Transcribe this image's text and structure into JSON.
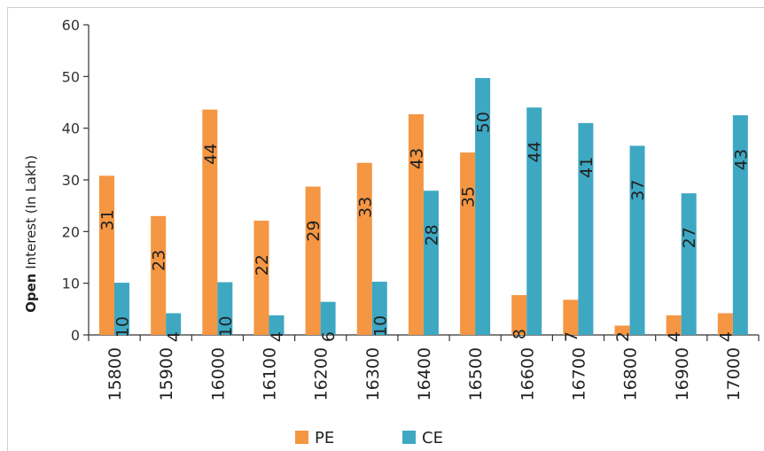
{
  "chart_data": {
    "type": "bar",
    "title": "",
    "xlabel": "",
    "ylabel_bold": "Open",
    "ylabel_rest": " Interest  (In Lakh)",
    "ylim": [
      0,
      60
    ],
    "yticks": [
      0,
      10,
      20,
      30,
      40,
      50,
      60
    ],
    "grid": false,
    "legend_position": "bottom",
    "categories": [
      "15800",
      "15900",
      "16000",
      "16100",
      "16200",
      "16300",
      "16400",
      "16500",
      "16600",
      "16700",
      "16800",
      "16900",
      "17000"
    ],
    "series": [
      {
        "name": "PE",
        "color": "#f59643",
        "values": [
          30.8,
          23.0,
          43.6,
          22.1,
          28.7,
          33.3,
          42.7,
          35.3,
          7.7,
          6.8,
          1.8,
          3.8,
          4.2
        ],
        "labels": [
          "31",
          "23",
          "44",
          "22",
          "29",
          "33",
          "43",
          "35",
          "8",
          "7",
          "2",
          "4",
          "4"
        ]
      },
      {
        "name": "CE",
        "color": "#3ea8c3",
        "values": [
          10.1,
          4.2,
          10.2,
          3.8,
          6.4,
          10.3,
          27.9,
          49.7,
          44.0,
          41.0,
          36.6,
          27.4,
          42.5
        ],
        "labels": [
          "10",
          "4",
          "10",
          "4",
          "6",
          "10",
          "28",
          "50",
          "44",
          "41",
          "37",
          "27",
          "43"
        ]
      }
    ]
  }
}
